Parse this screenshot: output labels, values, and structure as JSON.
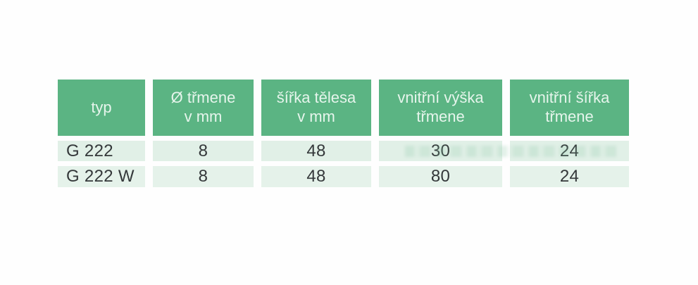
{
  "colors": {
    "page_bg": "#fefefe",
    "header_bg": "#5bb483",
    "header_text": "#e6f5ec",
    "row1_bg": "#e1f0e7",
    "row2_bg": "#e5f2ea",
    "data_text": "#34383a"
  },
  "table": {
    "headers": [
      "typ",
      "Ø třmene\nv mm",
      "šířka tělesa\nv mm",
      "vnitřní výška\ntřmene",
      "vnitřní šířka\ntřmene"
    ],
    "rows": [
      {
        "cells": [
          "G 222",
          "8",
          "48",
          "30",
          "24"
        ]
      },
      {
        "cells": [
          "G 222 W",
          "8",
          "48",
          "80",
          "24"
        ]
      }
    ]
  }
}
